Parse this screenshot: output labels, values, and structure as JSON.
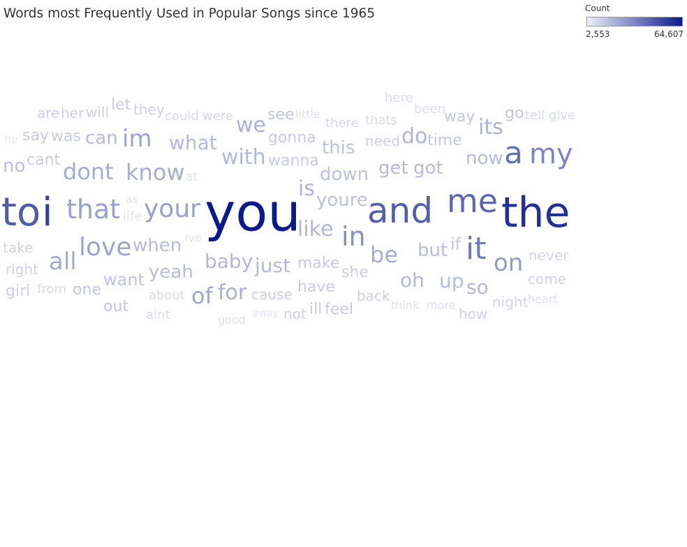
{
  "title": "Words most Frequently Used in Popular Songs since 1965",
  "legend": {
    "title": "Count",
    "min_label": "2,553",
    "max_label": "64,607",
    "min_color": "#eeeef6",
    "max_color": "#0a1a8c"
  },
  "chart_data": {
    "type": "wordcloud",
    "value_range": [
      2553,
      64607
    ],
    "words": [
      {
        "text": "you",
        "count": 64607
      },
      {
        "text": "the",
        "count": 56000
      },
      {
        "text": "i",
        "count": 50000
      },
      {
        "text": "to",
        "count": 40000
      },
      {
        "text": "and",
        "count": 39000
      },
      {
        "text": "me",
        "count": 36000
      },
      {
        "text": "a",
        "count": 33000
      },
      {
        "text": "it",
        "count": 30000
      },
      {
        "text": "my",
        "count": 26000
      },
      {
        "text": "in",
        "count": 23000
      },
      {
        "text": "on",
        "count": 20000
      },
      {
        "text": "that",
        "count": 18000
      },
      {
        "text": "your",
        "count": 18000
      },
      {
        "text": "im",
        "count": 17000
      },
      {
        "text": "love",
        "count": 17000
      },
      {
        "text": "of",
        "count": 16000
      },
      {
        "text": "all",
        "count": 15500
      },
      {
        "text": "be",
        "count": 15000
      },
      {
        "text": "dont",
        "count": 15000
      },
      {
        "text": "know",
        "count": 14500
      },
      {
        "text": "we",
        "count": 14000
      },
      {
        "text": "for",
        "count": 14000
      },
      {
        "text": "its",
        "count": 13500
      },
      {
        "text": "do",
        "count": 13000
      },
      {
        "text": "is",
        "count": 13000
      },
      {
        "text": "like",
        "count": 12500
      },
      {
        "text": "so",
        "count": 12000
      },
      {
        "text": "baby",
        "count": 12000
      },
      {
        "text": "just",
        "count": 12000
      },
      {
        "text": "with",
        "count": 12000
      },
      {
        "text": "now",
        "count": 11500
      },
      {
        "text": "what",
        "count": 11500
      },
      {
        "text": "get",
        "count": 11500
      },
      {
        "text": "oh",
        "count": 11500
      },
      {
        "text": "up",
        "count": 11000
      },
      {
        "text": "when",
        "count": 11000
      },
      {
        "text": "got",
        "count": 11000
      },
      {
        "text": "can",
        "count": 11000
      },
      {
        "text": "yeah",
        "count": 10500
      },
      {
        "text": "but",
        "count": 10500
      },
      {
        "text": "this",
        "count": 10000
      },
      {
        "text": "no",
        "count": 10000
      },
      {
        "text": "down",
        "count": 9500
      },
      {
        "text": "youre",
        "count": 9500
      },
      {
        "text": "want",
        "count": 9000
      },
      {
        "text": "one",
        "count": 8500
      },
      {
        "text": "out",
        "count": 8500
      },
      {
        "text": "if",
        "count": 8500
      },
      {
        "text": "go",
        "count": 8500
      },
      {
        "text": "see",
        "count": 8500
      },
      {
        "text": "way",
        "count": 8000
      },
      {
        "text": "time",
        "count": 8000
      },
      {
        "text": "gonna",
        "count": 7500
      },
      {
        "text": "wanna",
        "count": 7500
      },
      {
        "text": "make",
        "count": 7500
      },
      {
        "text": "have",
        "count": 7500
      },
      {
        "text": "let",
        "count": 7500
      },
      {
        "text": "was",
        "count": 7500
      },
      {
        "text": "say",
        "count": 7500
      },
      {
        "text": "cant",
        "count": 7000
      },
      {
        "text": "feel",
        "count": 7000
      },
      {
        "text": "ill",
        "count": 7000
      },
      {
        "text": "cause",
        "count": 7000
      },
      {
        "text": "she",
        "count": 7000
      },
      {
        "text": "back",
        "count": 6500
      },
      {
        "text": "need",
        "count": 6500
      },
      {
        "text": "will",
        "count": 6500
      },
      {
        "text": "her",
        "count": 6500
      },
      {
        "text": "are",
        "count": 6500
      },
      {
        "text": "they",
        "count": 6500
      },
      {
        "text": "girl",
        "count": 6500
      },
      {
        "text": "right",
        "count": 6000
      },
      {
        "text": "take",
        "count": 6000
      },
      {
        "text": "not",
        "count": 6000
      },
      {
        "text": "come",
        "count": 6000
      },
      {
        "text": "how",
        "count": 6000
      },
      {
        "text": "never",
        "count": 5500
      },
      {
        "text": "night",
        "count": 5500
      },
      {
        "text": "there",
        "count": 5000
      },
      {
        "text": "were",
        "count": 5000
      },
      {
        "text": "could",
        "count": 4500
      },
      {
        "text": "from",
        "count": 4500
      },
      {
        "text": "aint",
        "count": 4500
      },
      {
        "text": "about",
        "count": 4500
      },
      {
        "text": "tell",
        "count": 4500
      },
      {
        "text": "give",
        "count": 4500
      },
      {
        "text": "thats",
        "count": 4000
      },
      {
        "text": "been",
        "count": 4000
      },
      {
        "text": "here",
        "count": 4000
      },
      {
        "text": "little",
        "count": 3500
      },
      {
        "text": "more",
        "count": 3500
      },
      {
        "text": "think",
        "count": 3500
      },
      {
        "text": "heart",
        "count": 3500
      },
      {
        "text": "good",
        "count": 3500
      },
      {
        "text": "at",
        "count": 3500
      },
      {
        "text": "ive",
        "count": 3000
      },
      {
        "text": "as",
        "count": 3000
      },
      {
        "text": "life",
        "count": 3000
      },
      {
        "text": "away",
        "count": 2800
      },
      {
        "text": "he",
        "count": 2553
      }
    ]
  }
}
